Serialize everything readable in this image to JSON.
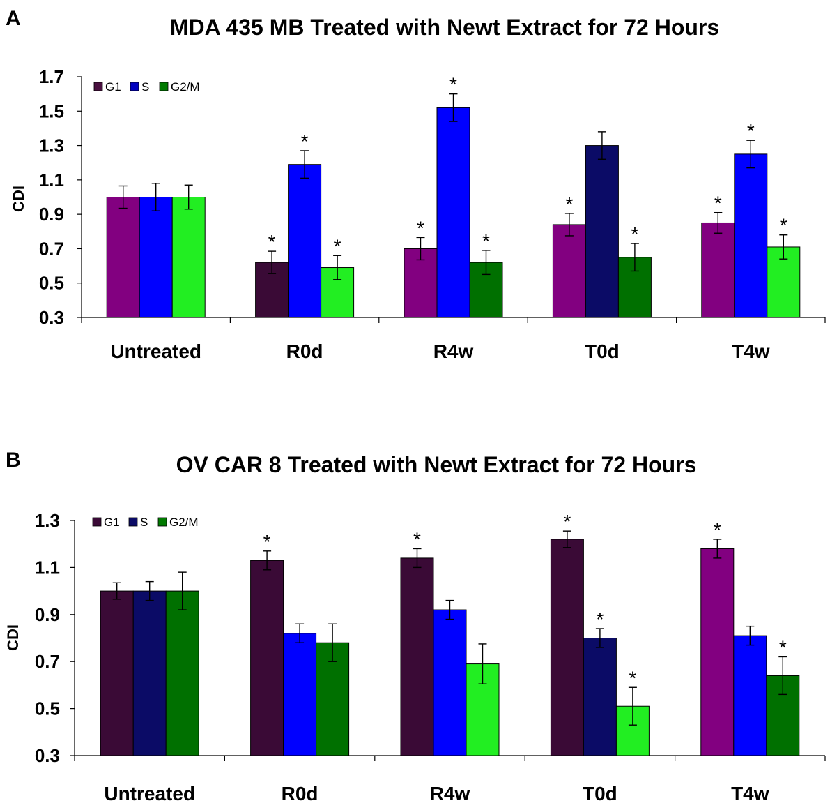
{
  "chart_data": [
    {
      "type": "bar",
      "panel_letter": "A",
      "title": "MDA 435 MB Treated with Newt Extract for 72 Hours",
      "xlabel": "",
      "ylabel": "CDI",
      "ylim": [
        0.3,
        1.7
      ],
      "yticks": [
        "0.3",
        "0.5",
        "0.7",
        "0.9",
        "1.1",
        "1.3",
        "1.5",
        "1.7"
      ],
      "legend_position": "top-left",
      "categories": [
        "Untreated",
        "R0d",
        "R4w",
        "T0d",
        "T4w"
      ],
      "series": [
        {
          "name": "G1",
          "legend_color": "#4a1040",
          "values": [
            1.0,
            0.62,
            0.7,
            0.84,
            0.85
          ],
          "errors": [
            0.065,
            0.065,
            0.065,
            0.065,
            0.06
          ],
          "significant": [
            false,
            true,
            true,
            true,
            true
          ],
          "colors": [
            "#820080",
            "#3a0a36",
            "#820080",
            "#820080",
            "#820080"
          ]
        },
        {
          "name": "S",
          "legend_color": "#0000c0",
          "values": [
            1.0,
            1.19,
            1.52,
            1.3,
            1.25
          ],
          "errors": [
            0.08,
            0.08,
            0.08,
            0.08,
            0.08
          ],
          "significant": [
            false,
            true,
            true,
            false,
            true
          ],
          "colors": [
            "#0000ff",
            "#0000ff",
            "#0000ff",
            "#0b0b66",
            "#0000ff"
          ]
        },
        {
          "name": "G2/M",
          "legend_color": "#007a00",
          "values": [
            1.0,
            0.59,
            0.62,
            0.65,
            0.71
          ],
          "errors": [
            0.07,
            0.07,
            0.07,
            0.08,
            0.07
          ],
          "significant": [
            false,
            true,
            true,
            true,
            true
          ],
          "colors": [
            "#22ee22",
            "#22ee22",
            "#007000",
            "#007000",
            "#22ee22"
          ]
        }
      ]
    },
    {
      "type": "bar",
      "panel_letter": "B",
      "title": "OV CAR 8 Treated with Newt Extract for 72 Hours",
      "xlabel": "",
      "ylabel": "CDI",
      "ylim": [
        0.3,
        1.3
      ],
      "yticks": [
        "0.3",
        "0.5",
        "0.7",
        "0.9",
        "1.1",
        "1.3"
      ],
      "legend_position": "top-left",
      "categories": [
        "Untreated",
        "R0d",
        "R4w",
        "T0d",
        "T4w"
      ],
      "series": [
        {
          "name": "G1",
          "legend_color": "#3a0a36",
          "values": [
            1.0,
            1.13,
            1.14,
            1.22,
            1.18
          ],
          "errors": [
            0.035,
            0.04,
            0.04,
            0.035,
            0.04
          ],
          "significant": [
            false,
            true,
            true,
            true,
            true
          ],
          "colors": [
            "#3a0a36",
            "#3a0a36",
            "#3a0a36",
            "#3a0a36",
            "#820080"
          ]
        },
        {
          "name": "S",
          "legend_color": "#0b0b66",
          "values": [
            1.0,
            0.82,
            0.92,
            0.8,
            0.81
          ],
          "errors": [
            0.04,
            0.04,
            0.04,
            0.04,
            0.04
          ],
          "significant": [
            false,
            false,
            false,
            true,
            false
          ],
          "colors": [
            "#0b0b66",
            "#0000ff",
            "#0000ff",
            "#0b0b66",
            "#0000ff"
          ]
        },
        {
          "name": "G2/M",
          "legend_color": "#007a00",
          "values": [
            1.0,
            0.78,
            0.69,
            0.51,
            0.64
          ],
          "errors": [
            0.08,
            0.08,
            0.085,
            0.08,
            0.08
          ],
          "significant": [
            false,
            false,
            false,
            true,
            true
          ],
          "colors": [
            "#007000",
            "#007000",
            "#22ee22",
            "#22ee22",
            "#007000"
          ]
        }
      ]
    }
  ]
}
